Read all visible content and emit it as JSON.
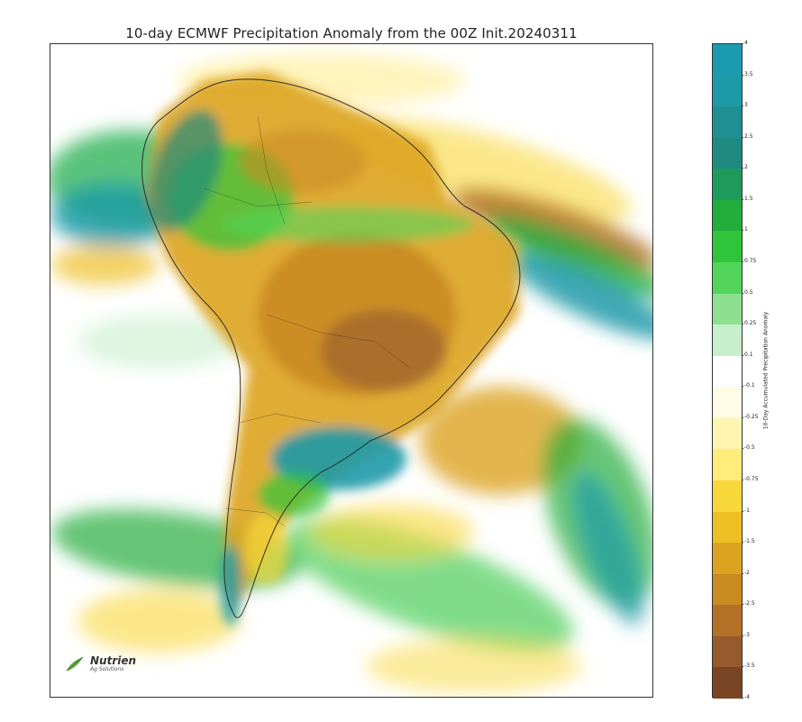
{
  "title": "10-day ECMWF Precipitation Anomaly from the 00Z Init.20240311",
  "colorbar": {
    "label": "10-Day Accumulated Precipitation Anomaly",
    "ticks": [
      "4",
      "3.5",
      "3",
      "2.5",
      "2",
      "1.5",
      "1",
      "0.75",
      "0.5",
      "0.25",
      "0.1",
      "-0.1",
      "-0.25",
      "-0.5",
      "-0.75",
      "-1",
      "-1.5",
      "-2",
      "-2.5",
      "-3",
      "-3.5",
      "-4"
    ],
    "colors": [
      "#1b9bb0",
      "#1c9aa8",
      "#1f8f93",
      "#1f8a7f",
      "#1e9a5a",
      "#22ad3c",
      "#2fc43a",
      "#52d55a",
      "#8ee08f",
      "#c8efcb",
      "#ffffff",
      "#fffbe6",
      "#fff5b0",
      "#ffec7a",
      "#f8d73a",
      "#eebf22",
      "#dca320",
      "#c98b22",
      "#b37026",
      "#955b2e",
      "#7a4525"
    ]
  },
  "logo": {
    "name": "Nutrien",
    "subtitle": "Ag Solutions"
  }
}
